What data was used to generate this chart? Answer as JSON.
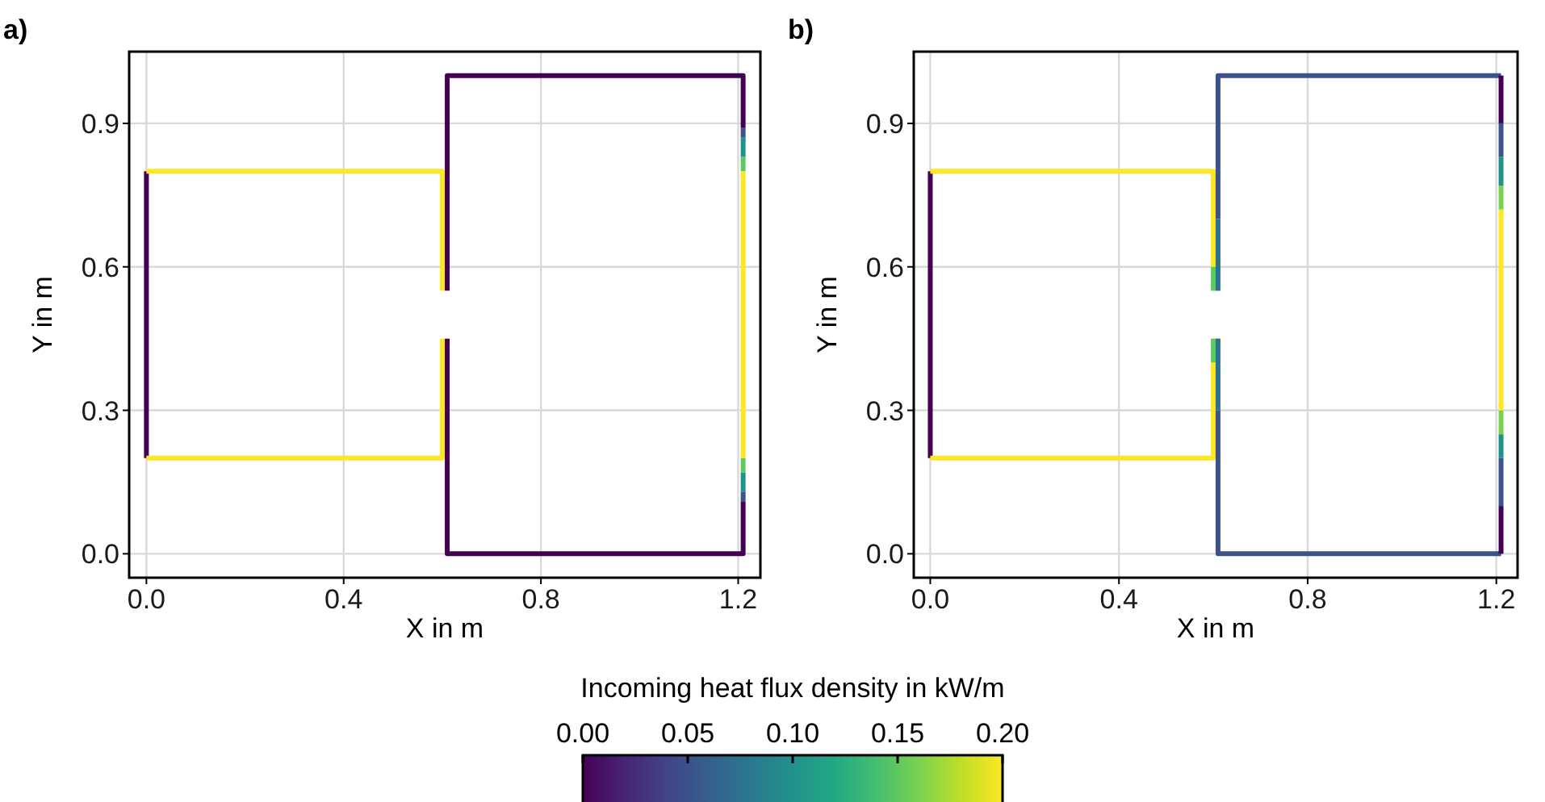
{
  "chart_data": [
    {
      "type": "line",
      "title": "a)",
      "xlabel": "X in m",
      "ylabel": "Y in m",
      "xlim": [
        -0.035,
        1.245
      ],
      "ylim": [
        -0.05,
        1.05
      ],
      "xticks": [
        {
          "value": 0,
          "label": "0.0"
        },
        0.4,
        0.8,
        1.2
      ],
      "yticks": [
        {
          "value": 0,
          "label": "0.0"
        },
        0.3,
        0.6,
        0.9
      ],
      "grid": true,
      "clabel": "Incoming heat flux density in kW/m",
      "clim": [
        0,
        0.2
      ],
      "cticks": [
        {
          "value": 0,
          "label": "0.00"
        },
        0.05,
        {
          "value": 0.1,
          "label": "0.10"
        },
        0.15,
        {
          "value": 0.2,
          "label": "0.20"
        }
      ],
      "series": [
        {
          "color": "#440154",
          "x": [
            0,
            0
          ],
          "values": [
            0.2,
            0.8
          ]
        },
        {
          "color": "#fde725",
          "x": [
            0,
            0.6,
            0.6
          ],
          "values": [
            0.8,
            0.8,
            0.55
          ]
        },
        {
          "color": "#fde725",
          "x": [
            0,
            0.6,
            0.6
          ],
          "values": [
            0.2,
            0.2,
            0.45
          ]
        },
        {
          "color": "#440154",
          "x": [
            0.61,
            0.61,
            1.21,
            1.21
          ],
          "values": [
            0.55,
            1.0,
            1.0,
            0.89
          ]
        },
        {
          "color": "#440154",
          "x": [
            0.61,
            0.61,
            1.21,
            1.21
          ],
          "values": [
            0.45,
            0,
            0,
            0.11
          ]
        },
        {
          "color": "#3b528b",
          "x": [
            1.21,
            1.21
          ],
          "values": [
            0.11,
            0.13
          ]
        },
        {
          "color": "#21918c",
          "x": [
            1.21,
            1.21
          ],
          "values": [
            0.13,
            0.17
          ]
        },
        {
          "color": "#5ec962",
          "x": [
            1.21,
            1.21
          ],
          "values": [
            0.17,
            0.2
          ]
        },
        {
          "color": "#fde725",
          "x": [
            1.21,
            1.21
          ],
          "values": [
            0.2,
            0.8
          ]
        },
        {
          "color": "#5ec962",
          "x": [
            1.21,
            1.21
          ],
          "values": [
            0.8,
            0.83
          ]
        },
        {
          "color": "#21918c",
          "x": [
            1.21,
            1.21
          ],
          "values": [
            0.83,
            0.87
          ]
        },
        {
          "color": "#3b528b",
          "x": [
            1.21,
            1.21
          ],
          "values": [
            0.87,
            0.89
          ]
        }
      ]
    },
    {
      "type": "line",
      "title": "b)",
      "xlabel": "X in m",
      "ylabel": "Y in m",
      "xlim": [
        -0.035,
        1.245
      ],
      "ylim": [
        -0.05,
        1.05
      ],
      "xticks": [
        {
          "value": 0,
          "label": "0.0"
        },
        0.4,
        0.8,
        1.2
      ],
      "yticks": [
        {
          "value": 0,
          "label": "0.0"
        },
        0.3,
        0.6,
        0.9
      ],
      "grid": true,
      "series": [
        {
          "color": "#440154",
          "x": [
            0,
            0
          ],
          "values": [
            0.2,
            0.8
          ]
        },
        {
          "color": "#fde725",
          "x": [
            0,
            0.6,
            0.6
          ],
          "values": [
            0.8,
            0.8,
            0.6
          ]
        },
        {
          "color": "#5ec962",
          "x": [
            0.6,
            0.6
          ],
          "values": [
            0.6,
            0.55
          ]
        },
        {
          "color": "#fde725",
          "x": [
            0,
            0.6,
            0.6
          ],
          "values": [
            0.2,
            0.2,
            0.4
          ]
        },
        {
          "color": "#5ec962",
          "x": [
            0.6,
            0.6
          ],
          "values": [
            0.4,
            0.45
          ]
        },
        {
          "color": "#2c728e",
          "x": [
            0.61,
            0.61
          ],
          "values": [
            0.55,
            0.7
          ]
        },
        {
          "color": "#3b528b",
          "x": [
            0.61,
            0.61,
            1.21
          ],
          "values": [
            0.7,
            1.0,
            1.0
          ]
        },
        {
          "color": "#440154",
          "x": [
            1.21,
            1.21
          ],
          "values": [
            1.0,
            0.9
          ]
        },
        {
          "color": "#2c728e",
          "x": [
            0.61,
            0.61
          ],
          "values": [
            0.45,
            0.3
          ]
        },
        {
          "color": "#3b528b",
          "x": [
            0.61,
            0.61,
            1.21
          ],
          "values": [
            0.3,
            0,
            0
          ]
        },
        {
          "color": "#440154",
          "x": [
            1.21,
            1.21
          ],
          "values": [
            0,
            0.1
          ]
        },
        {
          "color": "#3b528b",
          "x": [
            1.21,
            1.21
          ],
          "values": [
            0.1,
            0.2
          ]
        },
        {
          "color": "#21918c",
          "x": [
            1.21,
            1.21
          ],
          "values": [
            0.2,
            0.25
          ]
        },
        {
          "color": "#7ad151",
          "x": [
            1.21,
            1.21
          ],
          "values": [
            0.25,
            0.3
          ]
        },
        {
          "color": "#fde725",
          "x": [
            1.21,
            1.21
          ],
          "values": [
            0.3,
            0.72
          ]
        },
        {
          "color": "#7ad151",
          "x": [
            1.21,
            1.21
          ],
          "values": [
            0.72,
            0.77
          ]
        },
        {
          "color": "#21918c",
          "x": [
            1.21,
            1.21
          ],
          "values": [
            0.77,
            0.83
          ]
        },
        {
          "color": "#3b528b",
          "x": [
            1.21,
            1.21
          ],
          "values": [
            0.83,
            0.9
          ]
        }
      ]
    }
  ]
}
